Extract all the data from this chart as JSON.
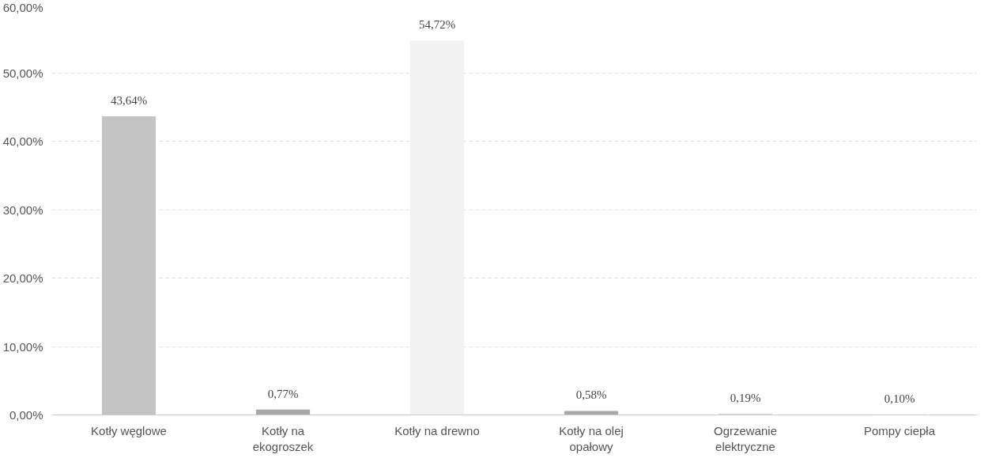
{
  "chart_data": {
    "type": "bar",
    "categories": [
      "Kotły węglowe",
      "Kotły na\nekogroszek",
      "Kotły na drewno",
      "Kotły na olej\nopałowy",
      "Ogrzewanie\nelektryczne",
      "Pompy ciepła"
    ],
    "values": [
      43.64,
      0.77,
      54.72,
      0.58,
      0.19,
      0.1
    ],
    "colors": [
      "#c4c4c4",
      "#a8a8a8",
      "#f2f2f2",
      "#a8a8a8",
      "#d8d8d8",
      "#d8d8d8"
    ],
    "value_labels": [
      "43,64%",
      "0,77%",
      "54,72%",
      "0,58%",
      "0,19%",
      "0,10%"
    ],
    "ylim": [
      0,
      60
    ],
    "yticks": [
      {
        "value": 0,
        "label": "0,00%"
      },
      {
        "value": 10,
        "label": "10,00%"
      },
      {
        "value": 20,
        "label": "20,00%"
      },
      {
        "value": 30,
        "label": "30,00%"
      },
      {
        "value": 40,
        "label": "40,00%"
      },
      {
        "value": 50,
        "label": "50,00%"
      },
      {
        "value": 60,
        "label": "60,00%"
      }
    ],
    "grid": "y"
  }
}
